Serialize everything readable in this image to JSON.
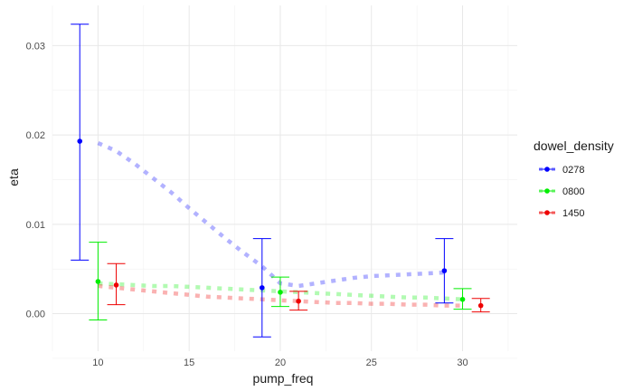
{
  "chart_data": {
    "type": "scatter",
    "xlabel": "pump_freq",
    "ylabel": "eta",
    "xlim": [
      7.5,
      33
    ],
    "ylim": [
      -0.0042,
      0.0345
    ],
    "x_ticks": [
      10,
      15,
      20,
      25,
      30
    ],
    "x_tick_labels": [
      "10",
      "15",
      "20",
      "25",
      "30"
    ],
    "x_minor_ticks": [
      7.5,
      12.5,
      17.5,
      22.5,
      27.5,
      32.5
    ],
    "y_ticks": [
      0.0,
      0.01,
      0.02,
      0.03
    ],
    "y_tick_labels": [
      "0.00",
      "0.01",
      "0.02",
      "0.03"
    ],
    "y_minor_ticks": [
      -0.005,
      0.005,
      0.015,
      0.025
    ],
    "grid": true,
    "legend": {
      "title": "dowel_density",
      "position": "right"
    },
    "series": [
      {
        "name": "0278",
        "color": "#0000ff",
        "points": [
          {
            "x": 9,
            "y": 0.0193,
            "ymin": 0.006,
            "ymax": 0.0324
          },
          {
            "x": 19,
            "y": 0.0029,
            "ymin": -0.0026,
            "ymax": 0.0084
          },
          {
            "x": 29,
            "y": 0.0048,
            "ymin": 0.0012,
            "ymax": 0.0084
          }
        ],
        "trend": [
          [
            10,
            0.0191
          ],
          [
            11,
            0.0182
          ],
          [
            12,
            0.0168
          ],
          [
            13,
            0.0152
          ],
          [
            14,
            0.0136
          ],
          [
            15,
            0.0118
          ],
          [
            16,
            0.0101
          ],
          [
            17,
            0.0084
          ],
          [
            18,
            0.0068
          ],
          [
            19,
            0.0053
          ],
          [
            20,
            0.0034
          ],
          [
            21,
            0.0031
          ],
          [
            22,
            0.0034
          ],
          [
            23,
            0.0037
          ],
          [
            24,
            0.004
          ],
          [
            25,
            0.0042
          ],
          [
            26,
            0.0043
          ],
          [
            27,
            0.0044
          ],
          [
            28,
            0.0045
          ],
          [
            29,
            0.0046
          ]
        ]
      },
      {
        "name": "0800",
        "color": "#00ee00",
        "points": [
          {
            "x": 10,
            "y": 0.0036,
            "ymin": -0.0007,
            "ymax": 0.008
          },
          {
            "x": 20,
            "y": 0.0024,
            "ymin": 0.0008,
            "ymax": 0.0041
          },
          {
            "x": 30,
            "y": 0.0016,
            "ymin": 0.0005,
            "ymax": 0.0028
          }
        ],
        "trend": [
          [
            10,
            0.0034
          ],
          [
            11,
            0.0033
          ],
          [
            12,
            0.0032
          ],
          [
            13,
            0.0031
          ],
          [
            14,
            0.0031
          ],
          [
            15,
            0.003
          ],
          [
            16,
            0.0029
          ],
          [
            17,
            0.0028
          ],
          [
            18,
            0.0027
          ],
          [
            19,
            0.0026
          ],
          [
            20,
            0.0025
          ],
          [
            21,
            0.0024
          ],
          [
            22,
            0.0023
          ],
          [
            23,
            0.0022
          ],
          [
            24,
            0.0021
          ],
          [
            25,
            0.002
          ],
          [
            26,
            0.0019
          ],
          [
            27,
            0.0018
          ],
          [
            28,
            0.0018
          ],
          [
            29,
            0.0017
          ],
          [
            30,
            0.0016
          ]
        ]
      },
      {
        "name": "1450",
        "color": "#ee0000",
        "points": [
          {
            "x": 11,
            "y": 0.0032,
            "ymin": 0.001,
            "ymax": 0.0056
          },
          {
            "x": 21,
            "y": 0.0014,
            "ymin": 0.0004,
            "ymax": 0.0025
          },
          {
            "x": 31,
            "y": 0.0009,
            "ymin": 0.0002,
            "ymax": 0.0017
          }
        ],
        "trend": [
          [
            10,
            0.0031
          ],
          [
            11,
            0.0029
          ],
          [
            12,
            0.0027
          ],
          [
            13,
            0.0025
          ],
          [
            14,
            0.0023
          ],
          [
            15,
            0.0021
          ],
          [
            16,
            0.0019
          ],
          [
            17,
            0.0018
          ],
          [
            18,
            0.0017
          ],
          [
            19,
            0.0016
          ],
          [
            20,
            0.0015
          ],
          [
            21,
            0.0014
          ],
          [
            22,
            0.0013
          ],
          [
            23,
            0.0012
          ],
          [
            24,
            0.0012
          ],
          [
            25,
            0.0011
          ],
          [
            26,
            0.0011
          ],
          [
            27,
            0.001
          ],
          [
            28,
            0.001
          ],
          [
            29,
            0.0009
          ],
          [
            30,
            0.0009
          ]
        ]
      }
    ]
  }
}
